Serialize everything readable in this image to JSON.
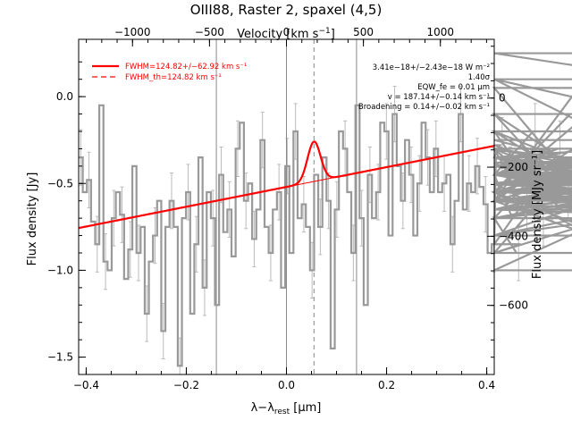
{
  "chart_data": {
    "type": "line",
    "title": "OIII88, Raster 2, spaxel (4,5)",
    "xlabel_main": "λ−λ",
    "xlabel_sub": "rest",
    "xlabel_unit": " [μm]",
    "ylabel_left": "Flux density [Jy]",
    "ylabel_right": "Flux density [MJy sr⁻¹]",
    "xlabel_top": "Velocity [km s⁻¹]",
    "xlim": [
      -0.415,
      0.415
    ],
    "ylim": [
      -1.6,
      0.33
    ],
    "xlim_top_velocity": [
      -1350,
      1350
    ],
    "ylim_right": [
      -800,
      170
    ],
    "x_ticks": [
      -0.4,
      -0.2,
      0.0,
      0.2,
      0.4
    ],
    "x_tick_labels": [
      "−0.4",
      "−0.2",
      "0.0",
      "0.2",
      "0.4"
    ],
    "y_ticks": [
      0.0,
      -0.5,
      -1.0,
      -1.5
    ],
    "y_tick_labels": [
      "0.0",
      "−0.5",
      "−1.0",
      "−1.5"
    ],
    "top_ticks": [
      -1000,
      -500,
      0,
      500,
      1000
    ],
    "top_tick_labels": [
      "−1000",
      "−500",
      "0",
      "500",
      "1000"
    ],
    "right_ticks": [
      0,
      -200,
      -400,
      -600
    ],
    "right_tick_labels": [
      "0",
      "−200",
      "−400",
      "−600"
    ],
    "vertical_lines": [
      -0.14,
      0.0,
      0.14
    ],
    "dashed_line_x": 0.055,
    "continuum": {
      "intercept": -0.52,
      "slope": 0.57
    },
    "gaussian": {
      "center": 0.055,
      "sigma": 0.013,
      "amplitude": 0.23
    },
    "spectrum": {
      "step": 0.00825,
      "x_start": -0.415,
      "values": [
        -0.35,
        -0.55,
        -0.48,
        -0.72,
        -0.85,
        -0.05,
        -0.95,
        -1.0,
        -0.7,
        -0.55,
        -0.68,
        -1.05,
        -0.88,
        -0.4,
        -0.9,
        -0.75,
        -1.25,
        -0.95,
        -0.8,
        -0.6,
        -1.35,
        -0.75,
        -0.6,
        -0.75,
        -1.55,
        -0.7,
        -0.55,
        -1.25,
        -0.85,
        -0.35,
        -1.1,
        -0.55,
        -0.7,
        -1.2,
        -0.45,
        -0.78,
        -0.65,
        -0.92,
        -0.3,
        -0.15,
        -0.6,
        -0.5,
        -0.82,
        -0.65,
        -0.25,
        -0.75,
        -0.9,
        -0.65,
        -0.55,
        -1.1,
        -0.4,
        -0.9,
        -0.2,
        -0.7,
        -0.62,
        -0.75,
        -1.0,
        -0.45,
        -0.75,
        -0.35,
        -0.6,
        -1.45,
        -0.65,
        -0.2,
        -0.3,
        -0.55,
        -0.9,
        -0.05,
        -0.7,
        -1.2,
        -0.45,
        -0.7,
        -0.55,
        -0.15,
        -0.2,
        -0.8,
        -0.1,
        -0.4,
        -0.6,
        -0.25,
        -0.45,
        -0.8,
        -0.5,
        -0.15,
        -0.35,
        -0.55,
        -0.3,
        -0.55,
        -0.5,
        -0.45,
        -0.85,
        -0.6,
        -0.1,
        -0.65,
        -0.5,
        -0.55,
        -0.4,
        -0.52,
        -0.62,
        -0.9,
        -0.85,
        -0.35,
        -0.28,
        -0.3,
        -0.45,
        -0.7,
        -0.9,
        -0.85,
        -0.6,
        -0.45,
        -0.2,
        -0.55,
        -0.7,
        -0.38,
        -0.55,
        -0.45,
        -0.3,
        -0.65,
        -0.55,
        -0.1,
        -0.6,
        0.05,
        -0.55,
        -0.5,
        -0.8,
        -0.6,
        -0.2,
        -0.45,
        -0.35,
        -0.3,
        -0.6,
        -0.5,
        -0.4,
        -0.25,
        -0.45,
        -0.6,
        -0.9,
        0.1,
        -0.1,
        -0.7,
        -0.55,
        0.25,
        0.1,
        -0.4,
        -0.6,
        -0.3,
        -0.45,
        -0.2,
        -0.9,
        -0.55,
        -1.0,
        -0.45,
        -0.4,
        -0.3,
        -0.55,
        -0.5,
        -0.35,
        -0.65,
        -0.35,
        -0.8,
        -0.6,
        -0.4,
        -0.65,
        -0.7,
        -0.4,
        -0.6,
        -0.45,
        -0.4,
        -0.5,
        -0.65,
        -0.55,
        -0.35,
        -0.65,
        -0.45,
        -0.5,
        -0.35,
        -0.55,
        -0.45,
        -0.6,
        -0.4,
        -0.5,
        -0.55,
        -0.6,
        -0.5,
        -0.4,
        -0.45,
        -0.7,
        -0.5,
        -0.35,
        -0.6,
        -0.55,
        -0.45,
        -0.6,
        -0.8,
        -0.35,
        -0.55,
        -0.5,
        -0.65,
        -0.4,
        -0.55,
        -0.5,
        -0.45,
        -0.6,
        -0.45,
        -0.55,
        -0.5,
        -0.35,
        -0.6,
        -0.55,
        -0.5,
        -0.45,
        -0.6,
        -0.55,
        -0.5
      ],
      "error": 0.16
    },
    "legend": [
      {
        "label": "FWHM=124.82+/−62.92 km s⁻¹",
        "style": "solid",
        "color": "#ff0000"
      },
      {
        "label": "FWHM_th=124.82 km s⁻¹",
        "style": "dashed",
        "color": "#ff0000"
      }
    ],
    "annotations": [
      "3.41e−18+/−2.43e−18 W m⁻²",
      "1.40σ",
      "EQW_fe = 0.01 μm",
      "v = 187.14+/−0.14 km s⁻¹",
      "Broadening = 0.14+/−0.02 km s⁻¹"
    ],
    "colors": {
      "spectrum": "#999999",
      "errorbars": "#bbbbbb",
      "fit": "#ff0000",
      "vlines": "#888888"
    }
  }
}
